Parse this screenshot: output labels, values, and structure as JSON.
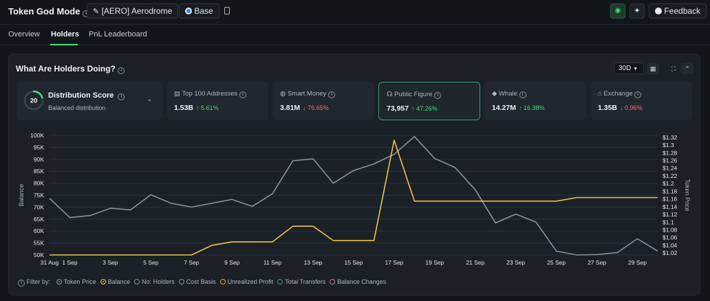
{
  "header": {
    "app_title": "Token God Mode",
    "token_label": "[AERO] Aerodrome",
    "chain_label": "Base",
    "feedback_label": "Feedback"
  },
  "tabs": [
    {
      "label": "Overview",
      "active": false
    },
    {
      "label": "Holders",
      "active": true
    },
    {
      "label": "PnL Leaderboard",
      "active": false
    }
  ],
  "panel": {
    "title": "What Are Holders Doing?",
    "timeframe": "30D"
  },
  "distribution": {
    "score": "20",
    "title": "Distribution Score",
    "subtitle": "Balanced distribution",
    "score_fraction": 0.2
  },
  "cards": [
    {
      "label": "Top 100 Addresses",
      "value": "1.53B",
      "change": "5.61%",
      "direction": "up",
      "icon": "list-icon"
    },
    {
      "label": "Smart Money",
      "value": "3.81M",
      "change": "76.65%",
      "direction": "down",
      "icon": "brain-icon"
    },
    {
      "label": "Public Figure",
      "value": "73,957",
      "change": "47.26%",
      "direction": "up",
      "icon": "figure-icon"
    },
    {
      "label": "Whale",
      "value": "14.27M",
      "change": "16.38%",
      "direction": "up",
      "icon": "whale-icon"
    },
    {
      "label": "Exchange",
      "value": "1.35B",
      "change": "0.96%",
      "direction": "down",
      "icon": "bank-icon"
    }
  ],
  "legend": {
    "prefix": "Filter by:",
    "items": [
      {
        "label": "Token Price",
        "color": "#8a939c",
        "active": true
      },
      {
        "label": "Balance",
        "color": "#f2c14e",
        "active": true
      },
      {
        "label": "No: Holders",
        "color": "#8a939c",
        "active": false
      },
      {
        "label": "Cost Basis",
        "color": "#8a939c",
        "active": false
      },
      {
        "label": "Unrealized Profit",
        "color": "#f2a33a",
        "active": false
      },
      {
        "label": "Total Transfers",
        "color": "#3a9d7a",
        "active": false
      },
      {
        "label": "Balance Changes",
        "color": "#c07a8a",
        "active": false
      }
    ]
  },
  "chart_data": {
    "type": "line",
    "ylabel": "Balance",
    "y2label": "Token Price",
    "x_ticks": [
      "31 Aug",
      "1 Sep",
      "3 Sep",
      "5 Sep",
      "7 Sep",
      "9 Sep",
      "11 Sep",
      "13 Sep",
      "15 Sep",
      "17 Sep",
      "19 Sep",
      "21 Sep",
      "23 Sep",
      "25 Sep",
      "27 Sep",
      "29 Sep"
    ],
    "y_ticks": [
      "50K",
      "55K",
      "60K",
      "65K",
      "70K",
      "75K",
      "80K",
      "85K",
      "90K",
      "95K",
      "100K"
    ],
    "y2_ticks": [
      "$1.02",
      "$1.04",
      "$1.06",
      "$1.08",
      "$1.1",
      "$1.12",
      "$1.14",
      "$1.16",
      "$1.18",
      "$1.2",
      "$1.22",
      "$1.24",
      "$1.26",
      "$1.28",
      "$1.3",
      "$1.32"
    ],
    "ylim": [
      50000,
      100000
    ],
    "y2lim": [
      1.015,
      1.325
    ],
    "grid": true,
    "series": [
      {
        "name": "Token Price",
        "axis": "right",
        "color": "#8a939c",
        "x": [
          "31 Aug",
          "1 Sep",
          "2 Sep",
          "3 Sep",
          "4 Sep",
          "5 Sep",
          "6 Sep",
          "7 Sep",
          "8 Sep",
          "9 Sep",
          "10 Sep",
          "11 Sep",
          "12 Sep",
          "13 Sep",
          "14 Sep",
          "15 Sep",
          "16 Sep",
          "17 Sep",
          "18 Sep",
          "19 Sep",
          "20 Sep",
          "21 Sep",
          "22 Sep",
          "23 Sep",
          "24 Sep",
          "25 Sep",
          "26 Sep",
          "27 Sep",
          "28 Sep",
          "29 Sep",
          "30 Sep"
        ],
        "values": [
          1.162,
          1.112,
          1.117,
          1.136,
          1.132,
          1.171,
          1.149,
          1.139,
          1.149,
          1.159,
          1.141,
          1.174,
          1.259,
          1.264,
          1.201,
          1.234,
          1.251,
          1.276,
          1.322,
          1.265,
          1.242,
          1.184,
          1.098,
          1.121,
          1.1,
          1.025,
          1.015,
          1.016,
          1.021,
          1.057,
          1.025
        ]
      },
      {
        "name": "Balance",
        "axis": "left",
        "color": "#f2c14e",
        "x": [
          "31 Aug",
          "1 Sep",
          "2 Sep",
          "3 Sep",
          "4 Sep",
          "5 Sep",
          "6 Sep",
          "7 Sep",
          "8 Sep",
          "9 Sep",
          "10 Sep",
          "11 Sep",
          "12 Sep",
          "13 Sep",
          "14 Sep",
          "15 Sep",
          "16 Sep",
          "17 Sep",
          "18 Sep",
          "19 Sep",
          "20 Sep",
          "21 Sep",
          "22 Sep",
          "23 Sep",
          "24 Sep",
          "25 Sep",
          "26 Sep",
          "27 Sep",
          "28 Sep",
          "29 Sep",
          "30 Sep"
        ],
        "values": [
          50000,
          50000,
          50000,
          50000,
          50000,
          50000,
          50000,
          50000,
          54000,
          55500,
          55500,
          55500,
          62000,
          62000,
          56000,
          56000,
          56000,
          98000,
          72500,
          72500,
          72500,
          72500,
          72500,
          72500,
          72500,
          72500,
          74000,
          74000,
          74000,
          74000,
          74000
        ]
      }
    ]
  }
}
